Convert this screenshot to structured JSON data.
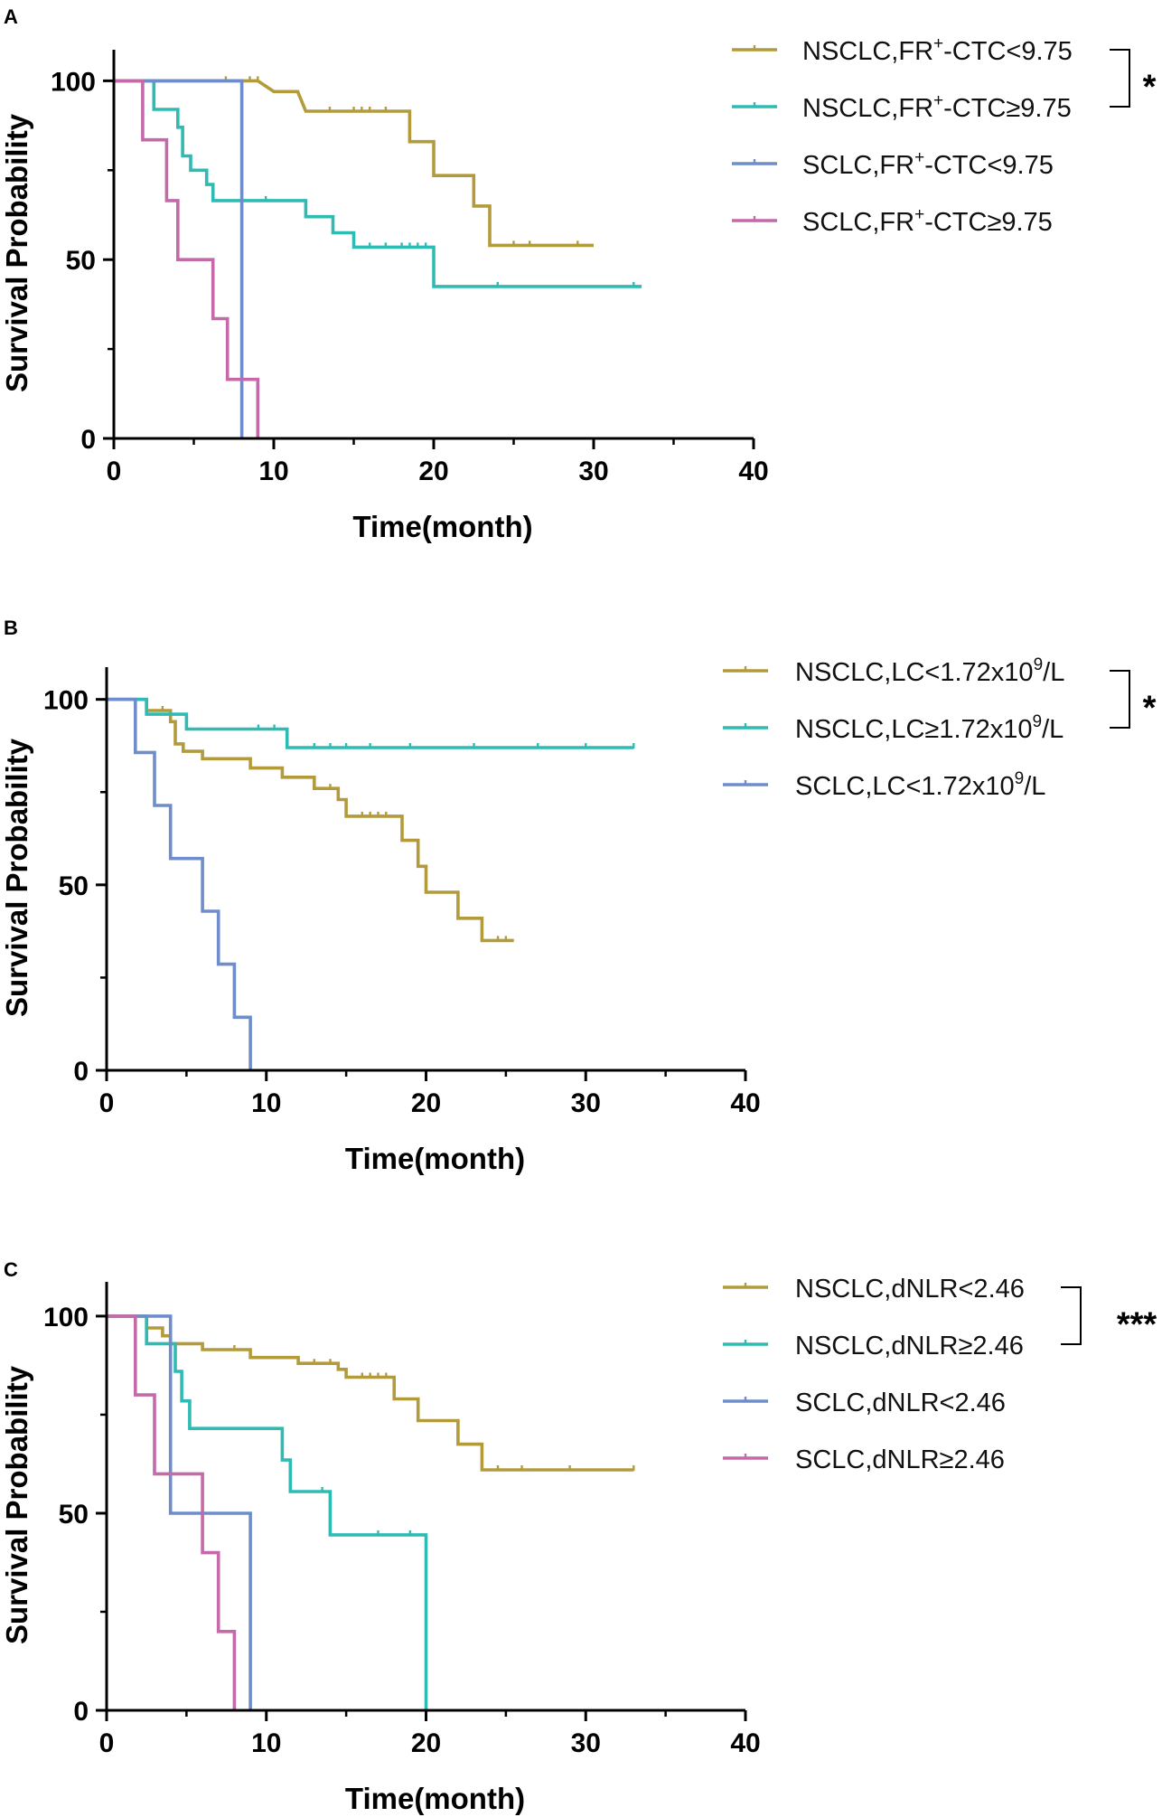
{
  "colors": {
    "gold": "#B39B3C",
    "teal": "#2EBBB3",
    "blue": "#6F8DCB",
    "magenta": "#C46AA8",
    "axis": "#000000"
  },
  "chart_data": [
    {
      "panel": "A",
      "type": "line",
      "subtype": "kaplan-meier",
      "xlabel": "Time(month)",
      "ylabel": "Survival Probability",
      "xlim": [
        0,
        40
      ],
      "ylim": [
        0,
        100
      ],
      "xticks": [
        "0",
        "10",
        "20",
        "30",
        "40"
      ],
      "yticks": [
        "0",
        "50",
        "100"
      ],
      "legend_position": "right",
      "series": [
        {
          "name": "NSCLC,FR+-CTC<9.75",
          "label_parts": {
            "pre": "NSCLC,FR",
            "sup": "+",
            "post": "-CTC<9.75"
          },
          "color": "gold",
          "steps": [
            [
              0,
              100
            ],
            [
              9,
              100
            ],
            [
              10,
              97
            ],
            [
              11.5,
              97
            ],
            [
              12,
              91.5
            ],
            [
              18.5,
              91.5
            ],
            [
              18.5,
              83
            ],
            [
              20,
              83
            ],
            [
              20,
              73.5
            ],
            [
              22.5,
              73.5
            ],
            [
              22.5,
              65
            ],
            [
              23.5,
              65
            ],
            [
              23.5,
              54
            ],
            [
              30,
              54
            ]
          ],
          "censors": [
            7,
            8.5,
            9,
            13.5,
            15,
            15.5,
            16,
            17,
            25,
            26,
            29
          ]
        },
        {
          "name": "NSCLC,FR+-CTC≥9.75",
          "label_parts": {
            "pre": "NSCLC,FR",
            "sup": "+",
            "post": "-CTC≥9.75"
          },
          "color": "teal",
          "steps": [
            [
              0,
              100
            ],
            [
              2.5,
              100
            ],
            [
              2.5,
              92
            ],
            [
              4,
              92
            ],
            [
              4,
              87
            ],
            [
              4.3,
              87
            ],
            [
              4.3,
              79
            ],
            [
              4.8,
              79
            ],
            [
              4.8,
              75
            ],
            [
              5.8,
              75
            ],
            [
              5.8,
              71
            ],
            [
              6.2,
              71
            ],
            [
              6.2,
              66.5
            ],
            [
              12,
              66.5
            ],
            [
              12,
              62
            ],
            [
              13.7,
              62
            ],
            [
              13.7,
              57.5
            ],
            [
              15,
              57.5
            ],
            [
              15,
              53.5
            ],
            [
              20,
              53.5
            ],
            [
              20,
              42.5
            ],
            [
              33,
              42.5
            ]
          ],
          "censors": [
            9.5,
            16,
            17,
            18,
            18.5,
            19,
            19.5,
            24,
            32.5
          ]
        },
        {
          "name": "SCLC,FR+-CTC<9.75",
          "label_parts": {
            "pre": "SCLC,FR",
            "sup": "+",
            "post": "-CTC<9.75"
          },
          "color": "blue",
          "steps": [
            [
              0,
              100
            ],
            [
              8,
              100
            ],
            [
              8,
              0
            ]
          ],
          "censors": []
        },
        {
          "name": "SCLC,FR+-CTC≥9.75",
          "label_parts": {
            "pre": "SCLC,FR",
            "sup": "+",
            "post": "-CTC≥9.75"
          },
          "color": "magenta",
          "steps": [
            [
              0,
              100
            ],
            [
              1.8,
              100
            ],
            [
              1.8,
              83.5
            ],
            [
              3.3,
              83.5
            ],
            [
              3.3,
              66.5
            ],
            [
              4,
              66.5
            ],
            [
              4,
              50
            ],
            [
              6.2,
              50
            ],
            [
              6.2,
              33.5
            ],
            [
              7.1,
              33.5
            ],
            [
              7.1,
              16.5
            ],
            [
              9,
              16.5
            ],
            [
              9,
              0
            ]
          ],
          "censors": []
        }
      ],
      "significance": "*",
      "bracket_series": [
        0,
        1
      ]
    },
    {
      "panel": "B",
      "type": "line",
      "subtype": "kaplan-meier",
      "xlabel": "Time(month)",
      "ylabel": "Survival Probability",
      "xlim": [
        0,
        40
      ],
      "ylim": [
        0,
        100
      ],
      "xticks": [
        "0",
        "10",
        "20",
        "30",
        "40"
      ],
      "yticks": [
        "0",
        "50",
        "100"
      ],
      "legend_position": "right",
      "series": [
        {
          "name": "NSCLC,LC<1.72x109/L",
          "label_parts": {
            "pre": "NSCLC,LC<1.72x10",
            "sup": "9",
            "post": "/L"
          },
          "color": "gold",
          "steps": [
            [
              0,
              100
            ],
            [
              2.5,
              100
            ],
            [
              2.5,
              97
            ],
            [
              4,
              97
            ],
            [
              4,
              94
            ],
            [
              4.3,
              94
            ],
            [
              4.3,
              88
            ],
            [
              4.8,
              88
            ],
            [
              4.8,
              86
            ],
            [
              6,
              86
            ],
            [
              6,
              84
            ],
            [
              9,
              84
            ],
            [
              9,
              81.5
            ],
            [
              11,
              81.5
            ],
            [
              11,
              79
            ],
            [
              13,
              79
            ],
            [
              13,
              76
            ],
            [
              14.5,
              76
            ],
            [
              14.5,
              73
            ],
            [
              15,
              73
            ],
            [
              15,
              68.5
            ],
            [
              18.5,
              68.5
            ],
            [
              18.5,
              62
            ],
            [
              19.5,
              62
            ],
            [
              19.5,
              55
            ],
            [
              20,
              55
            ],
            [
              20,
              48
            ],
            [
              22,
              48
            ],
            [
              22,
              41
            ],
            [
              23.5,
              41
            ],
            [
              23.5,
              35
            ],
            [
              25.5,
              35
            ]
          ],
          "censors": [
            3.5,
            14,
            16,
            16.5,
            17,
            17.5,
            24.5,
            25
          ]
        },
        {
          "name": "NSCLC,LC≥1.72x109/L",
          "label_parts": {
            "pre": "NSCLC,LC≥1.72x10",
            "sup": "9",
            "post": "/L"
          },
          "color": "teal",
          "steps": [
            [
              0,
              100
            ],
            [
              2.5,
              100
            ],
            [
              2.5,
              96
            ],
            [
              5,
              96
            ],
            [
              5,
              92
            ],
            [
              11.3,
              92
            ],
            [
              11.3,
              87
            ],
            [
              33,
              87
            ]
          ],
          "censors": [
            9.5,
            10.5,
            13,
            14,
            15,
            16.5,
            19,
            23,
            27,
            30,
            33
          ]
        },
        {
          "name": "SCLC,LC<1.72x109/L",
          "label_parts": {
            "pre": "SCLC,LC<1.72x10",
            "sup": "9",
            "post": "/L"
          },
          "color": "blue",
          "steps": [
            [
              0,
              100
            ],
            [
              1.8,
              100
            ],
            [
              1.8,
              85.7
            ],
            [
              3,
              85.7
            ],
            [
              3,
              71.4
            ],
            [
              4,
              71.4
            ],
            [
              4,
              57.1
            ],
            [
              6,
              57.1
            ],
            [
              6,
              42.9
            ],
            [
              7,
              42.9
            ],
            [
              7,
              28.6
            ],
            [
              8,
              28.6
            ],
            [
              8,
              14.3
            ],
            [
              9,
              14.3
            ],
            [
              9,
              0
            ]
          ],
          "censors": []
        }
      ],
      "significance": "*",
      "bracket_series": [
        0,
        1
      ]
    },
    {
      "panel": "C",
      "type": "line",
      "subtype": "kaplan-meier",
      "xlabel": "Time(month)",
      "ylabel": "Survival Probability",
      "xlim": [
        0,
        40
      ],
      "ylim": [
        0,
        100
      ],
      "xticks": [
        "0",
        "10",
        "20",
        "30",
        "40"
      ],
      "yticks": [
        "0",
        "50",
        "100"
      ],
      "legend_position": "right",
      "series": [
        {
          "name": "NSCLC,dNLR<2.46",
          "label_parts": {
            "pre": "NSCLC,dNLR<2.46",
            "sup": "",
            "post": ""
          },
          "color": "gold",
          "steps": [
            [
              0,
              100
            ],
            [
              2.5,
              100
            ],
            [
              2.5,
              97
            ],
            [
              3.5,
              97
            ],
            [
              3.5,
              95
            ],
            [
              4,
              95
            ],
            [
              4,
              93
            ],
            [
              6,
              93
            ],
            [
              6,
              91.5
            ],
            [
              9,
              91.5
            ],
            [
              9,
              89.5
            ],
            [
              12,
              89.5
            ],
            [
              12,
              88
            ],
            [
              14.5,
              88
            ],
            [
              14.5,
              86.5
            ],
            [
              15,
              86.5
            ],
            [
              15,
              84.5
            ],
            [
              18,
              84.5
            ],
            [
              18,
              79
            ],
            [
              19.5,
              79
            ],
            [
              19.5,
              73.5
            ],
            [
              22,
              73.5
            ],
            [
              22,
              67.5
            ],
            [
              23.5,
              67.5
            ],
            [
              23.5,
              61
            ],
            [
              33,
              61
            ]
          ],
          "censors": [
            8,
            9,
            13,
            14,
            16,
            16.5,
            17,
            17.5,
            24.5,
            26,
            29,
            33
          ]
        },
        {
          "name": "NSCLC,dNLR≥2.46",
          "label_parts": {
            "pre": "NSCLC,dNLR≥2.46",
            "sup": "",
            "post": ""
          },
          "color": "teal",
          "steps": [
            [
              0,
              100
            ],
            [
              2.5,
              100
            ],
            [
              2.5,
              93
            ],
            [
              4.3,
              93
            ],
            [
              4.3,
              86
            ],
            [
              4.7,
              86
            ],
            [
              4.7,
              78.5
            ],
            [
              5.2,
              78.5
            ],
            [
              5.2,
              71.5
            ],
            [
              11,
              71.5
            ],
            [
              11,
              63.5
            ],
            [
              11.5,
              63.5
            ],
            [
              11.5,
              55.5
            ],
            [
              14,
              55.5
            ],
            [
              14,
              44.5
            ],
            [
              20,
              44.5
            ],
            [
              20,
              0
            ]
          ],
          "censors": [
            13.5,
            17,
            19
          ]
        },
        {
          "name": "SCLC,dNLR<2.46",
          "label_parts": {
            "pre": "SCLC,dNLR<2.46",
            "sup": "",
            "post": ""
          },
          "color": "blue",
          "steps": [
            [
              0,
              100
            ],
            [
              4,
              100
            ],
            [
              4,
              50
            ],
            [
              9,
              50
            ],
            [
              9,
              0
            ]
          ],
          "censors": []
        },
        {
          "name": "SCLC,dNLR≥2.46",
          "label_parts": {
            "pre": "SCLC,dNLR≥2.46",
            "sup": "",
            "post": ""
          },
          "color": "magenta",
          "steps": [
            [
              0,
              100
            ],
            [
              1.8,
              100
            ],
            [
              1.8,
              80
            ],
            [
              3,
              80
            ],
            [
              3,
              60
            ],
            [
              6,
              60
            ],
            [
              6,
              40
            ],
            [
              7,
              40
            ],
            [
              7,
              20
            ],
            [
              8,
              20
            ],
            [
              8,
              0
            ]
          ],
          "censors": []
        }
      ],
      "significance": "***",
      "bracket_series": [
        0,
        1
      ]
    }
  ]
}
